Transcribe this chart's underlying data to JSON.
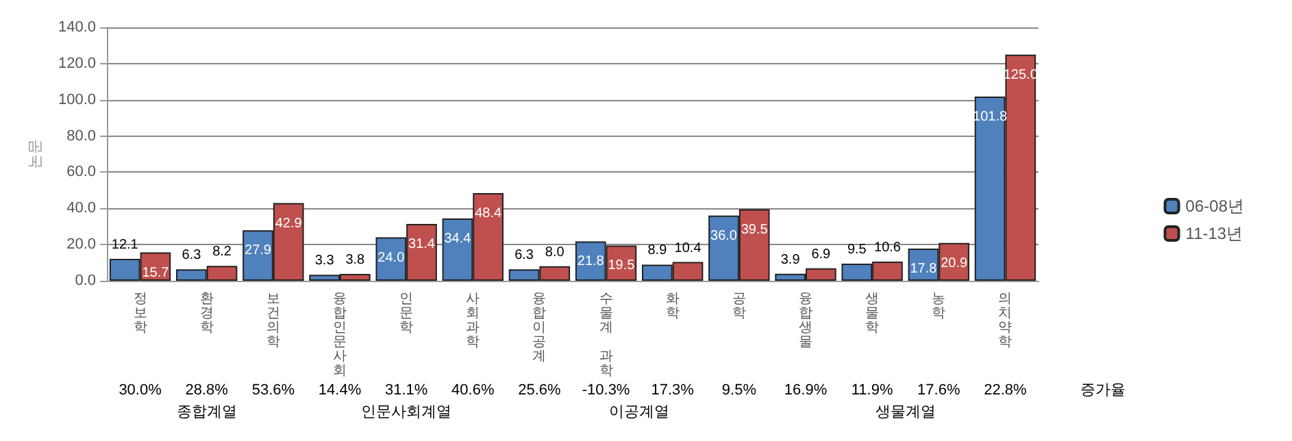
{
  "chart_data": {
    "type": "bar",
    "ylabel": "논문",
    "categories": [
      "정보학",
      "환경학",
      "보건의학",
      "융합인문사회",
      "인문학",
      "사회과학",
      "융합이공계",
      "수물계 과학",
      "화학",
      "공학",
      "융합생물",
      "생물학",
      "농학",
      "의치약학"
    ],
    "series": [
      {
        "name": "06-08년",
        "color": "#4f81bd",
        "values": [
          12.1,
          6.3,
          27.9,
          3.3,
          24.0,
          34.4,
          6.3,
          21.8,
          8.9,
          36.0,
          3.9,
          9.5,
          17.8,
          101.8
        ],
        "value_labels": [
          "12.1",
          "6.3",
          "27.9",
          "3.3",
          "24.0",
          "34.4",
          "6.3",
          "21.8",
          "8.9",
          "36.0",
          "3.9",
          "9.5",
          "17.8",
          "101.8"
        ]
      },
      {
        "name": "11-13년",
        "color": "#c0504d",
        "values": [
          15.7,
          8.2,
          42.9,
          3.8,
          31.4,
          48.4,
          8.0,
          19.5,
          10.4,
          39.5,
          6.9,
          10.6,
          20.9,
          125.0
        ],
        "value_labels": [
          "15.7",
          "8.2",
          "42.9",
          "3.8",
          "31.4",
          "48.4",
          "8.0",
          "19.5",
          "10.4",
          "39.5",
          "6.9",
          "10.6",
          "20.9",
          "125.0"
        ]
      }
    ],
    "ylim": [
      0,
      140
    ],
    "yticks": [
      {
        "value": 0,
        "label": "0.0"
      },
      {
        "value": 20,
        "label": "20.0"
      },
      {
        "value": 40,
        "label": "40.0"
      },
      {
        "value": 60,
        "label": "60.0"
      },
      {
        "value": 80,
        "label": "80.0"
      },
      {
        "value": 100,
        "label": "100.0"
      },
      {
        "value": 120,
        "label": "120.0"
      },
      {
        "value": 140,
        "label": "140.0"
      }
    ],
    "grid": "y",
    "legend": "right",
    "annotations": [
      "30.0%",
      "28.8%",
      "53.6%",
      "14.4%",
      "31.1%",
      "40.6%",
      "25.6%",
      "-10.3%",
      "17.3%",
      "9.5%",
      "16.9%",
      "11.9%",
      "17.6%",
      "22.8%",
      "증가율",
      "종합계열",
      "인문사회계열",
      "이공계열",
      "생물계열"
    ]
  }
}
